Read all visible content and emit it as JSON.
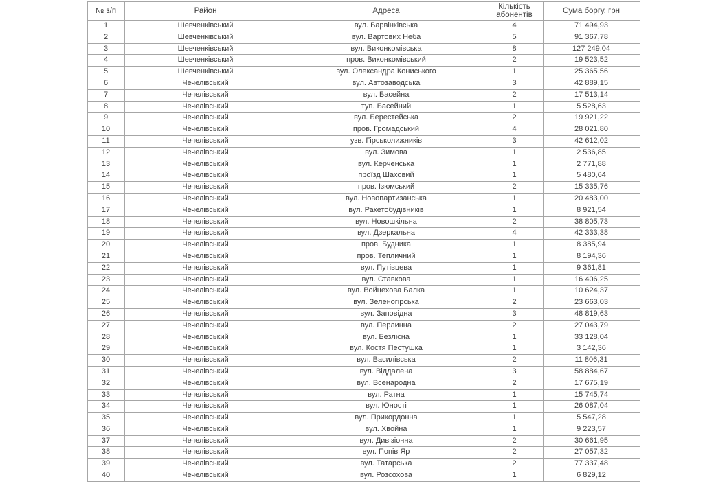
{
  "chart_data": {
    "type": "table",
    "title": "",
    "columns": [
      "№ з/п",
      "Район",
      "Адреса",
      "Кількість абонентів",
      "Сума боргу, грн"
    ],
    "rows": [
      [
        "1",
        "Шевченківський",
        "вул. Барвінківська",
        "4",
        "71 494,93"
      ],
      [
        "2",
        "Шевченківський",
        "вул. Вартових Неба",
        "5",
        "91 367,78"
      ],
      [
        "3",
        "Шевченківський",
        "вул. Виконкомівська",
        "8",
        "127 249.04"
      ],
      [
        "4",
        "Шевченківський",
        "пров. Виконкомівський",
        "2",
        "19 523,52"
      ],
      [
        "5",
        "Шевченківський",
        "вул. Олександра Кониського",
        "1",
        "25 365.56"
      ],
      [
        "6",
        "Чечелівський",
        "вул. Автозаводська",
        "3",
        "42 889,15"
      ],
      [
        "7",
        "Чечелівський",
        "вул. Басейна",
        "2",
        "17 513,14"
      ],
      [
        "8",
        "Чечелівський",
        "туп. Басейний",
        "1",
        "5 528,63"
      ],
      [
        "9",
        "Чечелівський",
        "вул. Берестейська",
        "2",
        "19 921,22"
      ],
      [
        "10",
        "Чечелівський",
        "пров. Громадський",
        "4",
        "28 021,80"
      ],
      [
        "11",
        "Чечелівський",
        "узв. Гірськолижників",
        "3",
        "42 612,02"
      ],
      [
        "12",
        "Чечелівський",
        "вул. Зимова",
        "1",
        "2 536,85"
      ],
      [
        "13",
        "Чечелівський",
        "вул. Керченська",
        "1",
        "2 771,88"
      ],
      [
        "14",
        "Чечелівський",
        "проїзд Шаховий",
        "1",
        "5 480,64"
      ],
      [
        "15",
        "Чечелівський",
        "пров. Ізюмський",
        "2",
        "15 335,76"
      ],
      [
        "16",
        "Чечелівський",
        "вул. Новопартизанська",
        "1",
        "20 483,00"
      ],
      [
        "17",
        "Чечелівський",
        "вул. Ракетобудівників",
        "1",
        "8 921,54"
      ],
      [
        "18",
        "Чечелівський",
        "вул. Новошкільна",
        "2",
        "38 805,73"
      ],
      [
        "19",
        "Чечелівський",
        "вул. Дзеркальна",
        "4",
        "42 333,38"
      ],
      [
        "20",
        "Чечелівський",
        "пров. Будника",
        "1",
        "8 385,94"
      ],
      [
        "21",
        "Чечелівський",
        "пров. Тепличний",
        "1",
        "8 194,36"
      ],
      [
        "22",
        "Чечелівський",
        "вул. Путівцева",
        "1",
        "9 361,81"
      ],
      [
        "23",
        "Чечелівський",
        "вул. Ставкова",
        "1",
        "16 406,25"
      ],
      [
        "24",
        "Чечелівський",
        "вул. Войцехова Балка",
        "1",
        "10 624,37"
      ],
      [
        "25",
        "Чечелівський",
        "вул. Зеленогірська",
        "2",
        "23 663,03"
      ],
      [
        "26",
        "Чечелівський",
        "вул. Заповідна",
        "3",
        "48 819,63"
      ],
      [
        "27",
        "Чечелівський",
        "вул. Перлинна",
        "2",
        "27 043,79"
      ],
      [
        "28",
        "Чечелівський",
        "вул. Безлісна",
        "1",
        "33 128,04"
      ],
      [
        "29",
        "Чечелівський",
        "вул. Костя Пестушка",
        "1",
        "3 142,36"
      ],
      [
        "30",
        "Чечелівський",
        "вул. Василівська",
        "2",
        "11 806,31"
      ],
      [
        "31",
        "Чечелівський",
        "вул. Віддалена",
        "3",
        "58 884,67"
      ],
      [
        "32",
        "Чечелівський",
        "вул. Всенародна",
        "2",
        "17 675,19"
      ],
      [
        "33",
        "Чечелівський",
        "вул. Ратна",
        "1",
        "15 745,74"
      ],
      [
        "34",
        "Чечелівський",
        "вул. Юності",
        "1",
        "26 087,04"
      ],
      [
        "35",
        "Чечелівський",
        "вул. Прикордонна",
        "1",
        "5 547,28"
      ],
      [
        "36",
        "Чечелівський",
        "вул. Хвойна",
        "1",
        "9 223,57"
      ],
      [
        "37",
        "Чечелівський",
        "вул. Дивізіонна",
        "2",
        "30 661,95"
      ],
      [
        "38",
        "Чечелівський",
        "вул. Попів Яр",
        "2",
        "27 057,32"
      ],
      [
        "39",
        "Чечелівський",
        "вул. Татарська",
        "2",
        "77 337,48"
      ],
      [
        "40",
        "Чечелівський",
        "вул. Розсохова",
        "1",
        "6 829,12"
      ]
    ]
  },
  "colors": {
    "border": "#a6a6a6",
    "text": "#3f3f3f",
    "background": "#ffffff"
  }
}
